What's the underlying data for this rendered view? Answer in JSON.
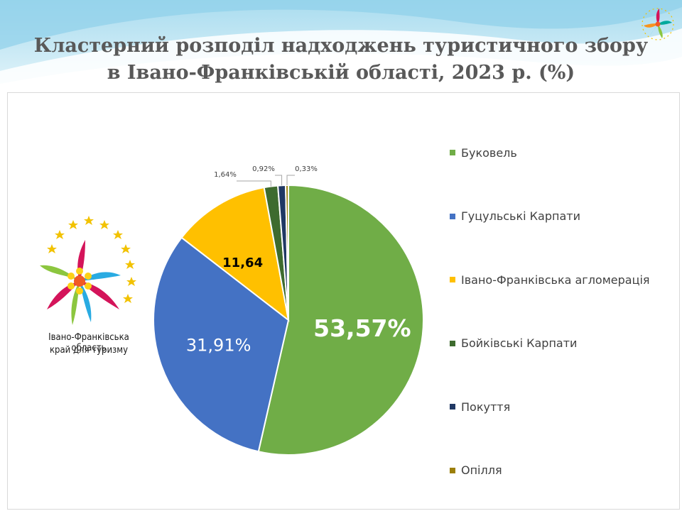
{
  "title": {
    "line1": "Кластерний розподіл надходжень туристичного збору",
    "line2": "в Івано-Франківській області, 2023 р. (%)"
  },
  "logo": {
    "line1": "Івано-Франківська область",
    "line2": "край для туризму"
  },
  "colors": {
    "header_sky": "#bfe6f2",
    "header_wave": "#e8f6fb",
    "title_text": "#595959"
  },
  "chart_data": {
    "type": "pie",
    "title": "Кластерний розподіл надходжень туристичного збору в Івано-Франківській області, 2023 р. (%)",
    "legend_position": "right",
    "start_angle_deg": 0,
    "direction": "clockwise",
    "slices": [
      {
        "label": "Буковель",
        "value": 53.57,
        "display": "53,57%",
        "color": "#70ad47"
      },
      {
        "label": "Гуцульські Карпати",
        "value": 31.91,
        "display": "31,91%",
        "color": "#4472c4"
      },
      {
        "label": "Івано-Франківська агломерація",
        "value": 11.64,
        "display": "11,64",
        "color": "#ffc000"
      },
      {
        "label": "Бойківські Карпати",
        "value": 1.64,
        "display": "1,64%",
        "color": "#3e6b2f"
      },
      {
        "label": "Покуття",
        "value": 0.92,
        "display": "0,92%",
        "color": "#203864"
      },
      {
        "label": "Опілля",
        "value": 0.33,
        "display": "0,33%",
        "color": "#9c7f0a"
      }
    ]
  }
}
